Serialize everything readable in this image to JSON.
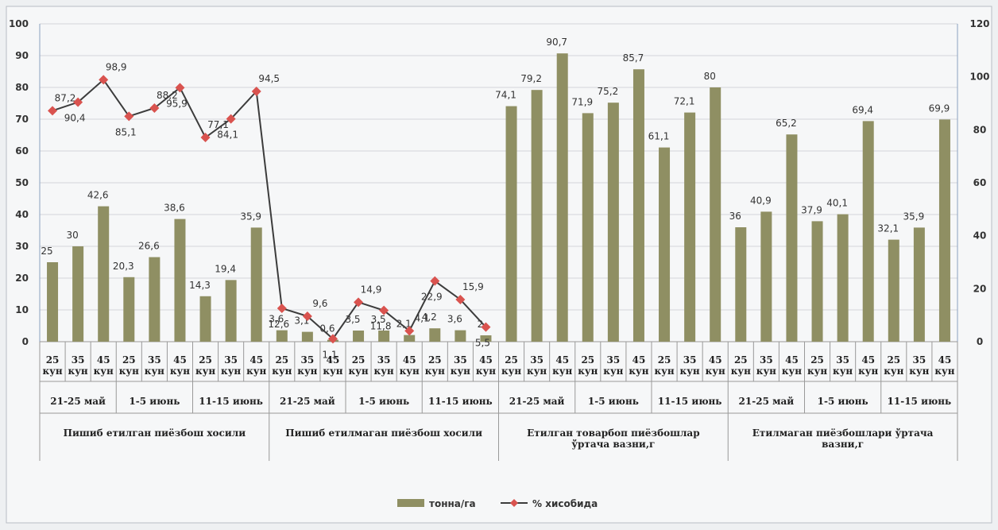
{
  "chart_data": {
    "type": "bar-line",
    "category_levels": {
      "days": [
        "25 кун",
        "35 кун",
        "45 кун",
        "25 кун",
        "35 кун",
        "45 кун",
        "25 кун",
        "35 кун",
        "45 кун",
        "25 кун",
        "35 кун",
        "45 кун",
        "25 кун",
        "35 кун",
        "45 кун",
        "25 кун",
        "35 кун",
        "45 кун",
        "25 кун",
        "35 кун",
        "45 кун",
        "25 кун",
        "35 кун",
        "45 кун",
        "25 кун",
        "35 кун",
        "45 кун",
        "25 кун",
        "35 кун",
        "45 кун",
        "25 кун",
        "35 кун",
        "45 кун",
        "25 кун",
        "35 кун",
        "45 кун"
      ],
      "dates": [
        "21-25 май",
        "1-5 июнь",
        "11-15 июнь",
        "21-25 май",
        "1-5 июнь",
        "11-15 июнь",
        "21-25 май",
        "1-5 июнь",
        "11-15 июнь",
        "21-25 май",
        "1-5 июнь",
        "11-15 июнь"
      ],
      "groups": [
        "Пишиб етилган пиёзбош хосили",
        "Пишиб етилмаган пиёзбош хосили",
        "Етилган товарбоп пиёзбошлар ўртача вазни,г",
        "Етилмаган пиёзбошлари ўртача вазни,г"
      ]
    },
    "series": [
      {
        "name": "тонна/га",
        "kind": "bar",
        "color": "#8f8f63",
        "values": [
          25,
          30,
          42.6,
          20.3,
          26.6,
          38.6,
          14.3,
          19.4,
          35.9,
          3.6,
          3.1,
          0.6,
          3.5,
          3.5,
          2.1,
          4.2,
          3.6,
          2,
          74.1,
          79.2,
          90.7,
          71.9,
          75.2,
          85.7,
          61.1,
          72.1,
          80,
          36,
          40.9,
          65.2,
          37.9,
          40.1,
          69.4,
          32.1,
          35.9,
          69.9
        ],
        "value_labels": [
          "25",
          "30",
          "42,6",
          "20,3",
          "26,6",
          "38,6",
          "14,3",
          "19,4",
          "35,9",
          "3,6",
          "3,1",
          "0,6",
          "3,5",
          "3,5",
          "2,1",
          "4,2",
          "3,6",
          "2",
          "74,1",
          "79,2",
          "90,7",
          "71,9",
          "75,2",
          "85,7",
          "61,1",
          "72,1",
          "80",
          "36",
          "40,9",
          "65,2",
          "37,9",
          "40,1",
          "69,4",
          "32,1",
          "35,9",
          "69,9"
        ]
      },
      {
        "name": "% хисобида",
        "kind": "line",
        "axis": "y2",
        "color": "#3c3c3c",
        "marker_color": "#d9534f",
        "values": [
          87.2,
          90.4,
          98.9,
          85.1,
          88.2,
          95.9,
          77.1,
          84.1,
          94.5,
          12.6,
          9.6,
          1.1,
          14.9,
          11.8,
          4.1,
          22.9,
          15.9,
          5.5,
          null,
          null,
          null,
          null,
          null,
          null,
          null,
          null,
          null,
          null,
          null,
          null,
          null,
          null,
          null,
          null,
          null,
          null
        ],
        "value_labels": [
          "87,2",
          "90,4",
          "98,9",
          "85,1",
          "88,2",
          "95,9",
          "77,1",
          "84,1",
          "94,5",
          "12,6",
          "9,6",
          "1,1",
          "14,9",
          "11,8",
          "4,1",
          "22,9",
          "15,9",
          "5,5",
          null,
          null,
          null,
          null,
          null,
          null,
          null,
          null,
          null,
          null,
          null,
          null,
          null,
          null,
          null,
          null,
          null,
          null
        ]
      }
    ],
    "ylim": [
      0,
      100
    ],
    "yticks": [
      0,
      10,
      20,
      30,
      40,
      50,
      60,
      70,
      80,
      90,
      100
    ],
    "y2lim": [
      0,
      120
    ],
    "y2ticks": [
      0,
      20,
      40,
      60,
      80,
      100,
      120
    ],
    "grid": true
  }
}
